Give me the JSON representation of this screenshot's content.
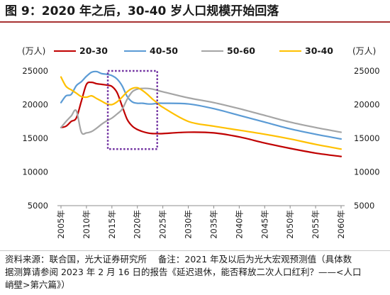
{
  "title": "图 9：2020 年之后，30-40 岁人口规模开始回落",
  "colors": {
    "title_rule": "#a83232",
    "axis": "#8c8c8c",
    "highlight": "#7030a0"
  },
  "chart_data": {
    "type": "line",
    "y_unit_left": "(万人)",
    "y_unit_right": "(万人)",
    "ylim": [
      5000,
      25000
    ],
    "y2lim": [
      5000,
      25000
    ],
    "yticks": [
      5000,
      10000,
      15000,
      20000,
      25000
    ],
    "ytick_labels": [
      "5000",
      "10000",
      "15000",
      "20000",
      "25000"
    ],
    "xlim": [
      2005,
      2060
    ],
    "xticks": [
      2005,
      2010,
      2015,
      2020,
      2025,
      2030,
      2035,
      2040,
      2045,
      2050,
      2055,
      2060
    ],
    "xtick_labels": [
      "2005年",
      "2010年",
      "2015年",
      "2020年",
      "2025年",
      "2030年",
      "2035年",
      "2040年",
      "2045年",
      "2050年",
      "2055年",
      "2060年"
    ],
    "legend": "top",
    "grid": false,
    "x": [
      2005,
      2006,
      2007,
      2008,
      2009,
      2010,
      2011,
      2012,
      2013,
      2014,
      2015,
      2016,
      2017,
      2018,
      2019,
      2020,
      2021,
      2022,
      2023,
      2024,
      2025,
      2030,
      2035,
      2040,
      2045,
      2050,
      2055,
      2060
    ],
    "series": [
      {
        "name": "20-30",
        "color": "#c00000",
        "values": [
          16600,
          16800,
          17500,
          18000,
          20500,
          23000,
          23300,
          23100,
          23000,
          22900,
          22700,
          21800,
          19800,
          17800,
          16800,
          16300,
          16000,
          15800,
          15700,
          15700,
          15700,
          15900,
          15800,
          15200,
          14300,
          13500,
          12800,
          12300
        ]
      },
      {
        "name": "40-50",
        "color": "#5b9bd5",
        "values": [
          20300,
          21300,
          21500,
          22800,
          23400,
          24200,
          24800,
          24900,
          24600,
          24500,
          24300,
          23800,
          22800,
          21200,
          20400,
          20200,
          20200,
          20100,
          20100,
          20200,
          20200,
          20100,
          19400,
          18400,
          17400,
          16400,
          15600,
          14900
        ]
      },
      {
        "name": "50-60",
        "color": "#a5a5a5",
        "values": [
          16600,
          17500,
          18300,
          19100,
          15900,
          15800,
          16000,
          16500,
          17100,
          17600,
          18000,
          18600,
          19300,
          20800,
          21900,
          22300,
          22400,
          22400,
          22300,
          22100,
          21900,
          21000,
          20300,
          19400,
          18400,
          17400,
          16600,
          15900
        ]
      },
      {
        "name": "30-40",
        "color": "#ffc000",
        "values": [
          24100,
          22700,
          22200,
          21700,
          21200,
          21100,
          21300,
          20900,
          20500,
          20100,
          20000,
          20400,
          21100,
          21900,
          22400,
          22500,
          22100,
          21500,
          20800,
          20200,
          19600,
          17500,
          16800,
          16200,
          15600,
          14900,
          14100,
          13400
        ]
      }
    ],
    "highlight": {
      "x_range": [
        2014.2,
        2023.9
      ],
      "y_range": [
        13400,
        25000
      ]
    }
  },
  "source": {
    "lines": [
      "资料来源：联合国，光大证券研究所    备注：2021 年及以后为光大宏观预测值（具体数",
      "据测算请参阅 2023 年 2 月 16 日的报告《延迟退休，能否释放二次人口红利？——<人口",
      "峭壁>第六篇》）"
    ]
  }
}
